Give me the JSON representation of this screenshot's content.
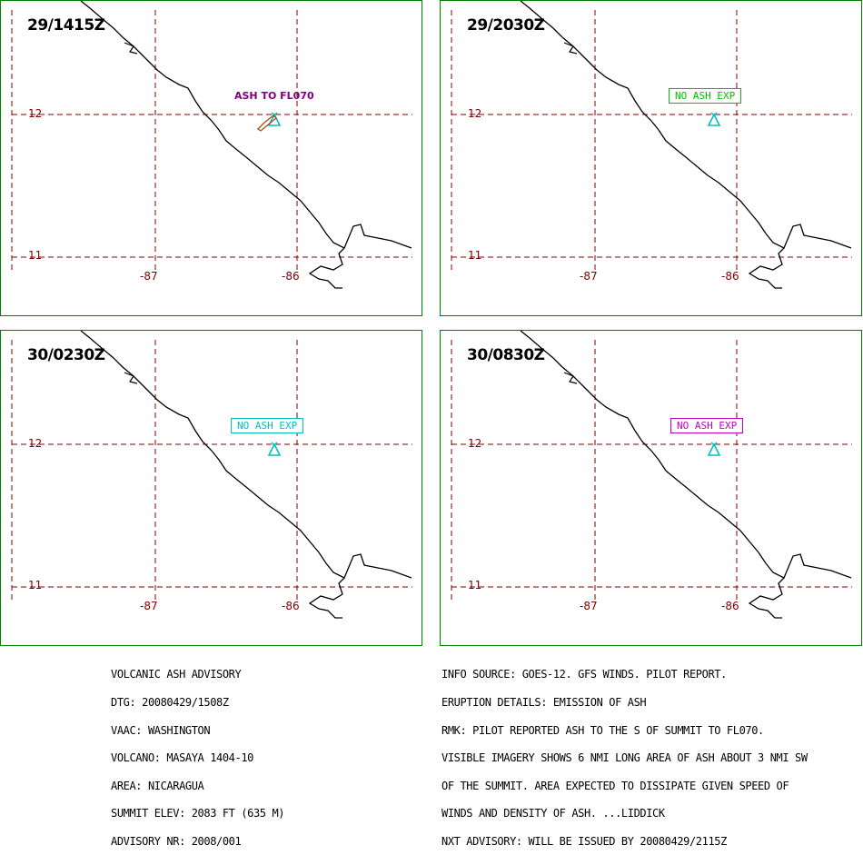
{
  "panels": [
    {
      "time": "29/1415Z",
      "status": "ASH TO FL070",
      "status_style": "plain",
      "status_color": "#800080"
    },
    {
      "time": "29/2030Z",
      "status": "NO ASH EXP",
      "status_style": "boxed",
      "status_color": "#00c000"
    },
    {
      "time": "30/0230Z",
      "status": "NO ASH EXP",
      "status_style": "boxed",
      "status_color": "#00c0c0"
    },
    {
      "time": "30/0830Z",
      "status": "NO ASH EXP",
      "status_style": "boxed",
      "status_color": "#c000c0"
    }
  ],
  "grid": {
    "lat_labels": [
      "12",
      "11"
    ],
    "lon_labels": [
      "-87",
      "-86"
    ]
  },
  "colors": {
    "panel_border": "#008000",
    "grid": "#800000",
    "coastline": "#000000",
    "volcano": "#00c0c0",
    "ash_plume": "#a05020"
  },
  "volcano_icon": "volcano-icon",
  "advisory_left": [
    "VOLCANIC ASH ADVISORY",
    "DTG: 20080429/1508Z",
    "VAAC: WASHINGTON",
    "VOLCANO: MASAYA 1404-10",
    "AREA: NICARAGUA",
    "SUMMIT ELEV: 2083 FT (635 M)",
    "ADVISORY NR: 2008/001"
  ],
  "advisory_right": [
    "INFO SOURCE: GOES-12. GFS WINDS. PILOT REPORT.",
    "ERUPTION DETAILS: EMISSION OF ASH",
    "RMK: PILOT REPORTED ASH TO THE S OF SUMMIT TO FL070.",
    "VISIBLE IMAGERY SHOWS 6 NMI LONG AREA OF ASH ABOUT 3 NMI SW",
    "OF THE SUMMIT. AREA EXPECTED TO DISSIPATE GIVEN SPEED OF",
    "WINDS AND DENSITY OF ASH. ...LIDDICK",
    "NXT ADVISORY: WILL BE ISSUED BY 20080429/2115Z"
  ]
}
